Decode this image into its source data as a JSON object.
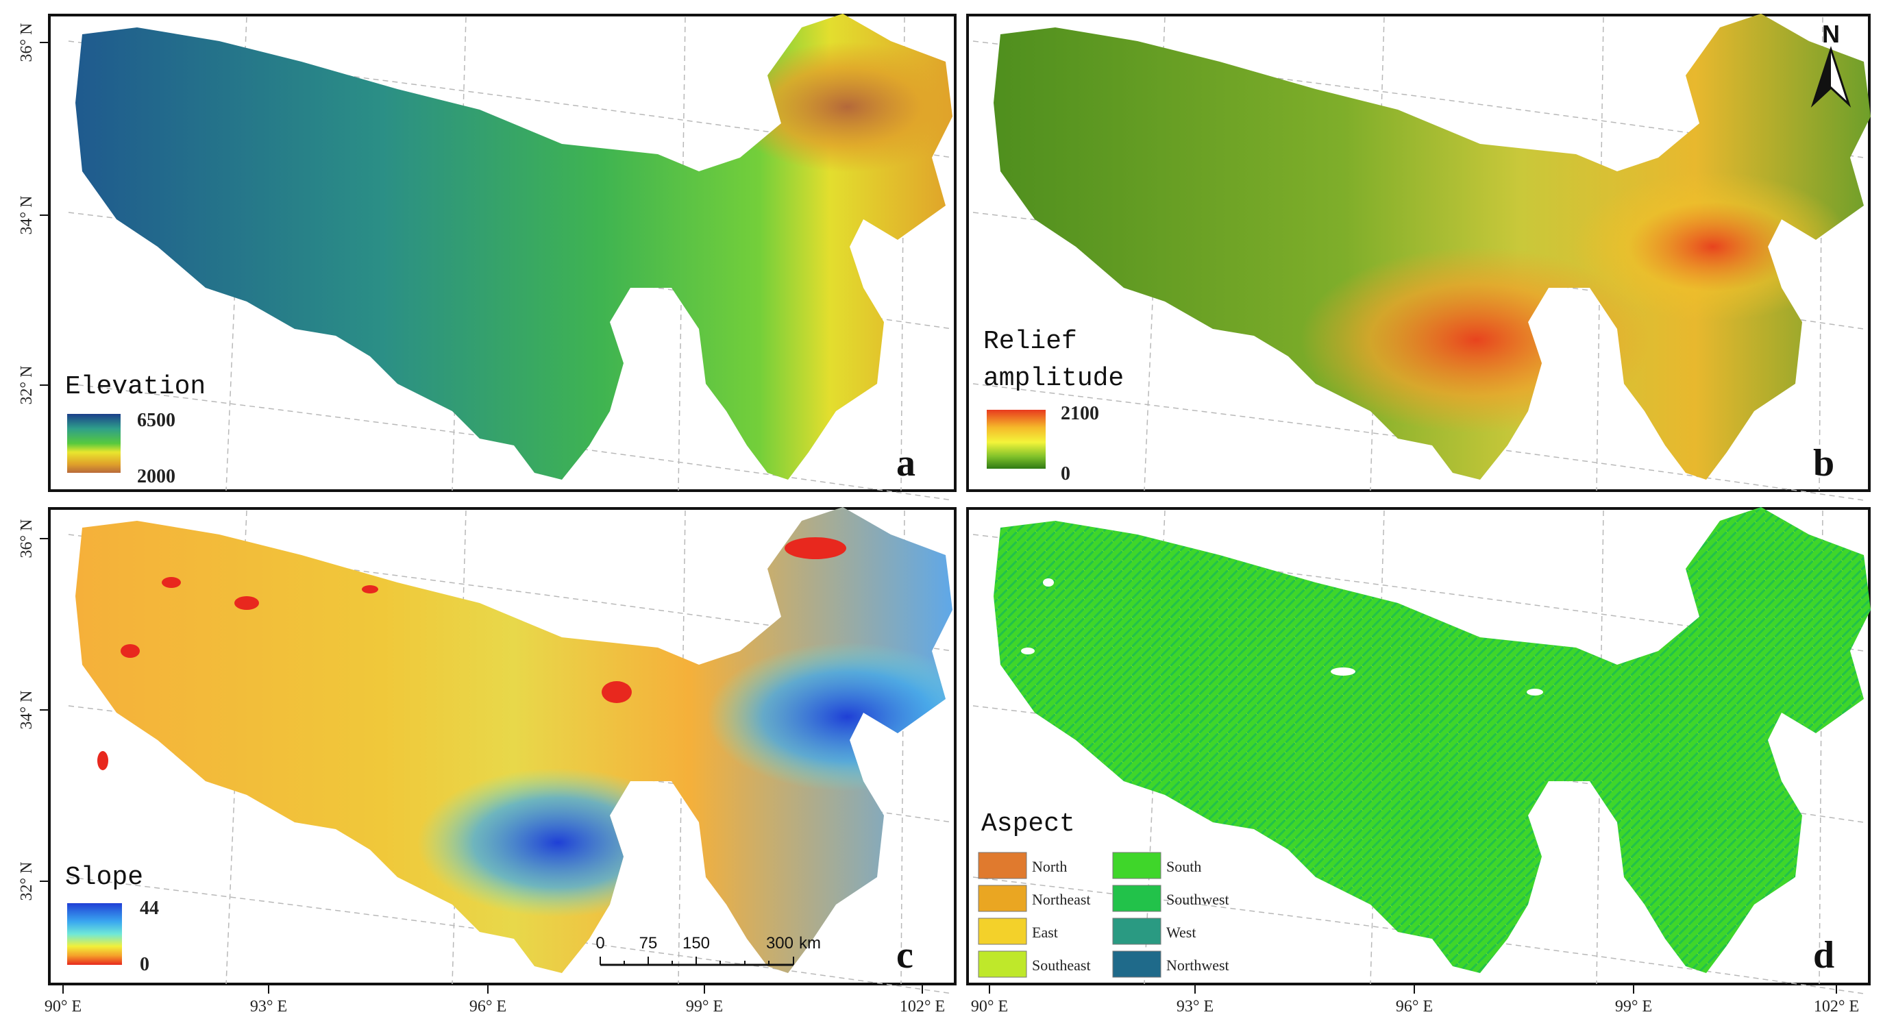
{
  "figure": {
    "panels": [
      {
        "letter": "a",
        "legend_title": "Elevation",
        "legend_max": "6500",
        "legend_min": "2000",
        "colors": [
          "#1a3f8a",
          "#2f9f8a",
          "#56c93e",
          "#e9e62e",
          "#e0a22a",
          "#b86a3a"
        ]
      },
      {
        "letter": "b",
        "legend_title_line1": "Relief",
        "legend_title_line2": "amplitude",
        "legend_max": "2100",
        "legend_min": "0",
        "colors": [
          "#e83a1e",
          "#f5b92a",
          "#f4f43a",
          "#7ec02a",
          "#2f7a14"
        ]
      },
      {
        "letter": "c",
        "legend_title": "Slope",
        "legend_max": "44",
        "legend_min": "0",
        "colors": [
          "#1f3fd6",
          "#3aa8f0",
          "#6fe8d8",
          "#f2f03a",
          "#f5a12a",
          "#e8281e"
        ]
      },
      {
        "letter": "d",
        "legend_title": "Aspect"
      }
    ],
    "aspect_classes": [
      {
        "label": "North",
        "color": "#e07a2e"
      },
      {
        "label": "Northeast",
        "color": "#eaa622"
      },
      {
        "label": "East",
        "color": "#f3d12a"
      },
      {
        "label": "Southeast",
        "color": "#bfe82a"
      },
      {
        "label": "South",
        "color": "#3fd62a"
      },
      {
        "label": "Southwest",
        "color": "#22c24a"
      },
      {
        "label": "West",
        "color": "#2a9a82"
      },
      {
        "label": "Northwest",
        "color": "#1f6a8a"
      }
    ],
    "lat_labels": [
      "36° N",
      "34° N",
      "32° N"
    ],
    "lon_labels": [
      "90° E",
      "93° E",
      "96° E",
      "99° E",
      "102° E"
    ],
    "north_arrow": "N",
    "scale_bar": {
      "ticks": [
        "0",
        "75",
        "150",
        "300"
      ],
      "unit": "km"
    }
  }
}
